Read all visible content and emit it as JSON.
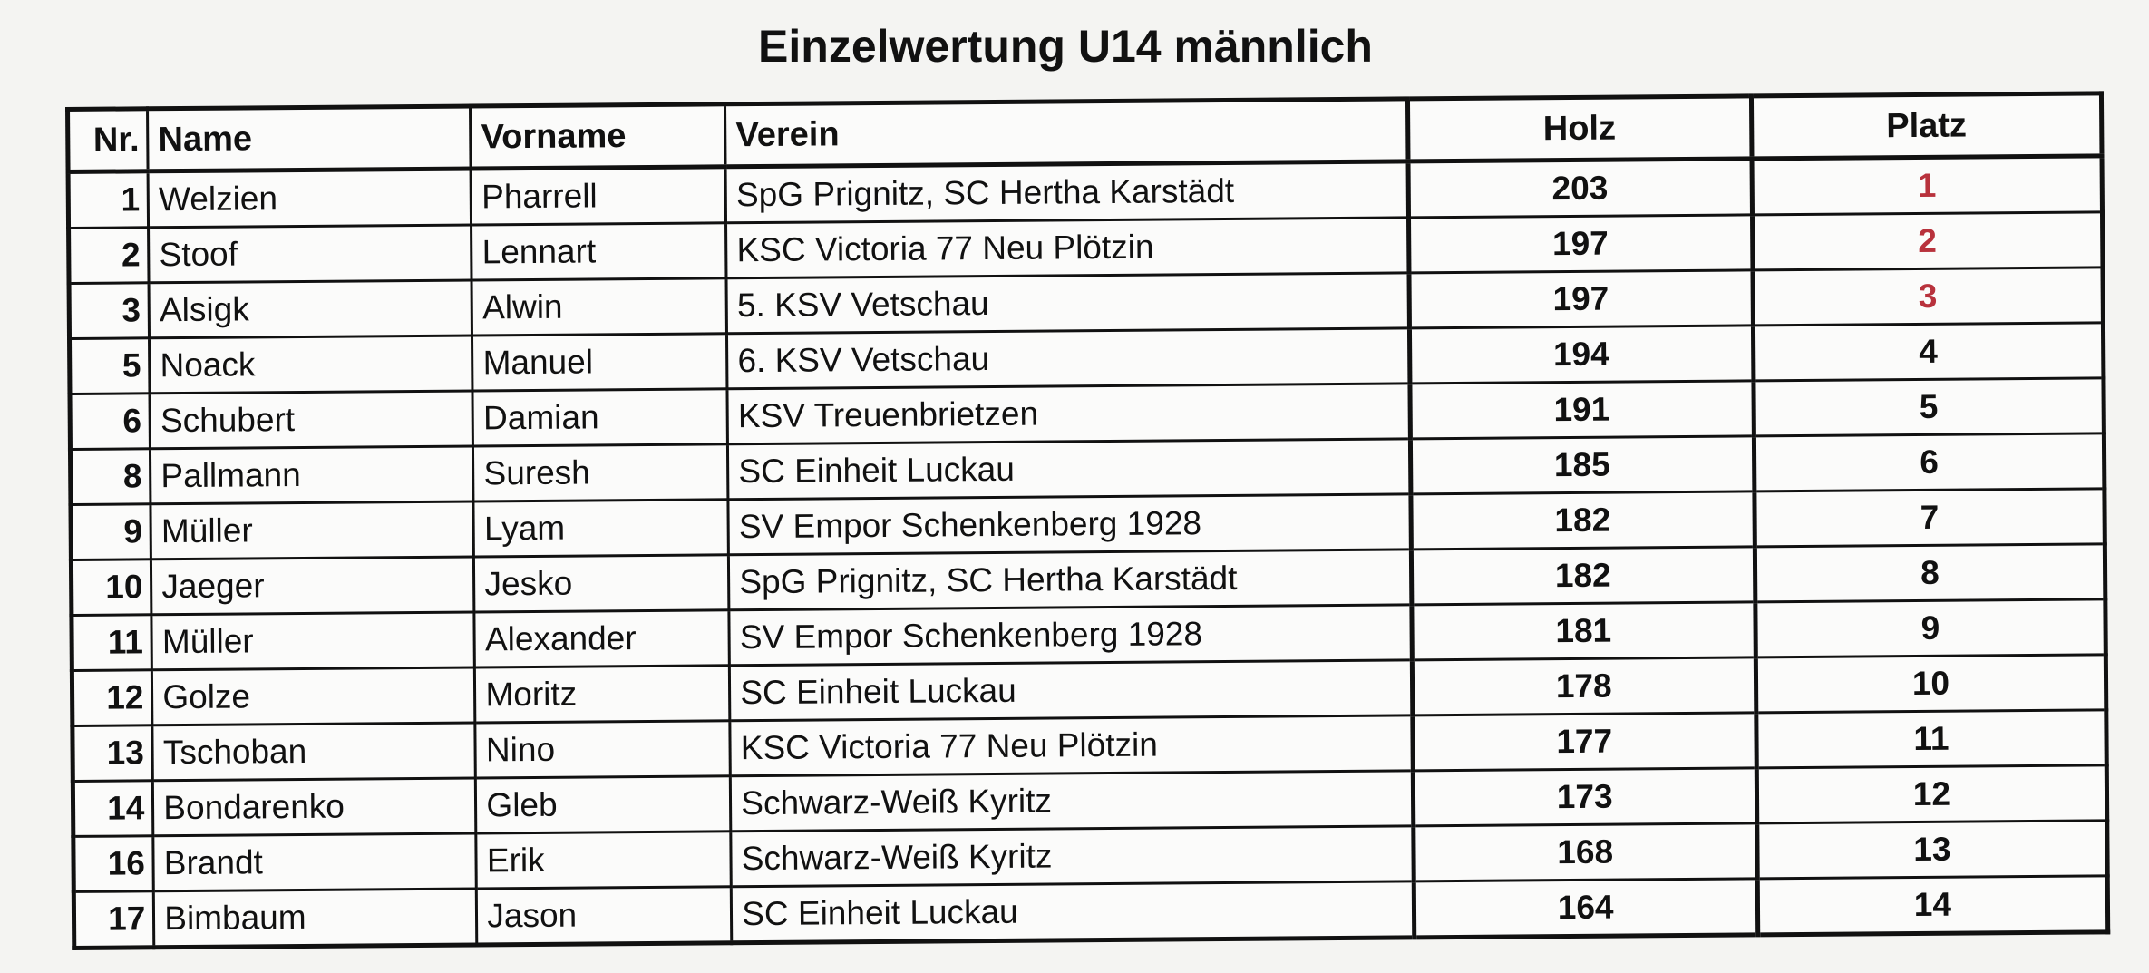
{
  "title": "Einzelwertung U14 männlich",
  "colors": {
    "podium": "#b8323c",
    "text": "#111111"
  },
  "table": {
    "headers": [
      "Nr.",
      "Name",
      "Vorname",
      "Verein",
      "Holz",
      "Platz"
    ],
    "rows": [
      {
        "nr": "1",
        "name": "Welzien",
        "vorname": "Pharrell",
        "verein": "SpG Prignitz, SC Hertha Karstädt",
        "holz": "203",
        "platz": "1"
      },
      {
        "nr": "2",
        "name": "Stoof",
        "vorname": "Lennart",
        "verein": "KSC Victoria 77 Neu Plötzin",
        "holz": "197",
        "platz": "2"
      },
      {
        "nr": "3",
        "name": "Alsigk",
        "vorname": "Alwin",
        "verein": "5. KSV Vetschau",
        "holz": "197",
        "platz": "3"
      },
      {
        "nr": "5",
        "name": "Noack",
        "vorname": "Manuel",
        "verein": "6. KSV Vetschau",
        "holz": "194",
        "platz": "4"
      },
      {
        "nr": "6",
        "name": "Schubert",
        "vorname": "Damian",
        "verein": "KSV Treuenbrietzen",
        "holz": "191",
        "platz": "5"
      },
      {
        "nr": "8",
        "name": "Pallmann",
        "vorname": "Suresh",
        "verein": "SC Einheit Luckau",
        "holz": "185",
        "platz": "6"
      },
      {
        "nr": "9",
        "name": "Müller",
        "vorname": "Lyam",
        "verein": "SV Empor Schenkenberg 1928",
        "holz": "182",
        "platz": "7"
      },
      {
        "nr": "10",
        "name": "Jaeger",
        "vorname": "Jesko",
        "verein": "SpG Prignitz, SC Hertha Karstädt",
        "holz": "182",
        "platz": "8"
      },
      {
        "nr": "11",
        "name": "Müller",
        "vorname": "Alexander",
        "verein": "SV Empor Schenkenberg 1928",
        "holz": "181",
        "platz": "9"
      },
      {
        "nr": "12",
        "name": "Golze",
        "vorname": "Moritz",
        "verein": "SC Einheit Luckau",
        "holz": "178",
        "platz": "10"
      },
      {
        "nr": "13",
        "name": "Tschoban",
        "vorname": "Nino",
        "verein": "KSC Victoria 77 Neu Plötzin",
        "holz": "177",
        "platz": "11"
      },
      {
        "nr": "14",
        "name": "Bondarenko",
        "vorname": "Gleb",
        "verein": "Schwarz-Weiß Kyritz",
        "holz": "173",
        "platz": "12"
      },
      {
        "nr": "16",
        "name": "Brandt",
        "vorname": "Erik",
        "verein": "Schwarz-Weiß Kyritz",
        "holz": "168",
        "platz": "13"
      },
      {
        "nr": "17",
        "name": "Bimbaum",
        "vorname": "Jason",
        "verein": "SC Einheit Luckau",
        "holz": "164",
        "platz": "14"
      }
    ]
  }
}
